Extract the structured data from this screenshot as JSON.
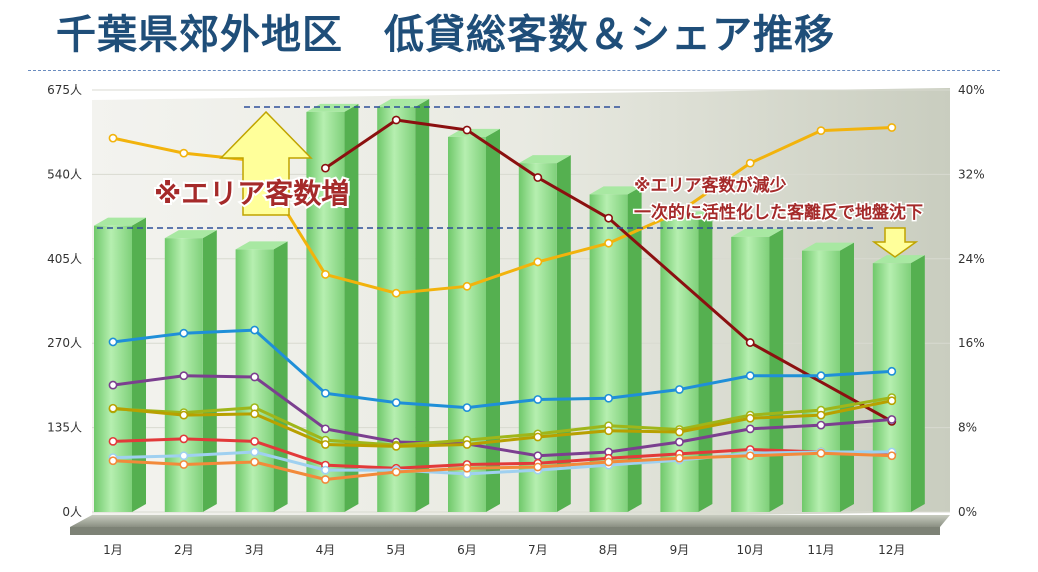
{
  "title": "千葉県郊外地区　低貸総客数＆シェア推移",
  "chart_data": {
    "type": "bar+line",
    "categories": [
      "1月",
      "2月",
      "3月",
      "4月",
      "5月",
      "6月",
      "7月",
      "8月",
      "9月",
      "10月",
      "11月",
      "12月"
    ],
    "left_axis": {
      "ticks": [
        "0人",
        "135人",
        "270人",
        "405人",
        "540人",
        "675人"
      ],
      "ylim": [
        0,
        675
      ]
    },
    "right_axis": {
      "ticks": [
        "0%",
        "8%",
        "16%",
        "24%",
        "32%",
        "40%"
      ],
      "ylim": [
        0,
        40
      ]
    },
    "bars": {
      "values": [
        458,
        438,
        420,
        640,
        648,
        600,
        558,
        508,
        468,
        440,
        418,
        398
      ],
      "color": "#8fdc8a"
    },
    "lines": [
      {
        "axis": "left",
        "color": "#f2b30c",
        "values": [
          598,
          574,
          562,
          380,
          350,
          361,
          400,
          430,
          480,
          558,
          610,
          615
        ]
      },
      {
        "axis": "left",
        "color": "#8b1010",
        "values": [
          null,
          null,
          null,
          550,
          627,
          611,
          535,
          470,
          null,
          271,
          null,
          145
        ]
      },
      {
        "axis": "left",
        "color": "#1f8fd8",
        "values": [
          272,
          286,
          291,
          190,
          175,
          167,
          180,
          182,
          196,
          218,
          218,
          225
        ]
      },
      {
        "axis": "left",
        "color": "#7b3f8f",
        "values": [
          203,
          218,
          216,
          133,
          112,
          109,
          90,
          96,
          112,
          133,
          139,
          148
        ]
      },
      {
        "axis": "left",
        "color": "#9fb61a",
        "values": [
          165,
          159,
          167,
          115,
          107,
          115,
          125,
          138,
          132,
          155,
          163,
          183
        ]
      },
      {
        "axis": "left",
        "color": "#b8a000",
        "values": [
          166,
          155,
          157,
          108,
          105,
          108,
          120,
          130,
          128,
          150,
          155,
          178
        ]
      },
      {
        "axis": "left",
        "color": "#e23a3a",
        "values": [
          113,
          117,
          113,
          75,
          70,
          76,
          78,
          86,
          93,
          100,
          96,
          93
        ]
      },
      {
        "axis": "left",
        "color": "#9fd0f0",
        "values": [
          87,
          90,
          96,
          67,
          67,
          61,
          67,
          75,
          83,
          94,
          96,
          96
        ]
      },
      {
        "axis": "left",
        "color": "#f28a3a",
        "values": [
          82,
          76,
          80,
          52,
          64,
          70,
          72,
          80,
          86,
          90,
          94,
          90
        ]
      }
    ],
    "annotations": {
      "up_text": "※エリア客数増",
      "down_text_1": "※エリア客数が減少",
      "down_text_2": "一次的に活性化した客離反で地盤沈下"
    }
  }
}
